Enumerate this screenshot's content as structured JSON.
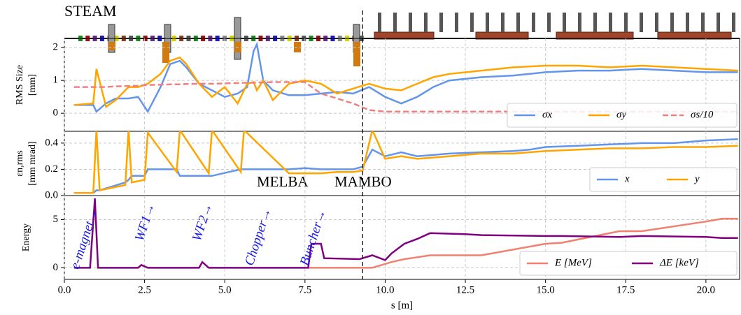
{
  "annotations": {
    "beamline": "STEAM",
    "left_section": "MELBA",
    "right_section": "MAMBO",
    "elements": [
      "e-magnet→",
      "WF1→",
      "WF2→",
      "Chopper→",
      "Buncher→"
    ],
    "section_boundary_s": 9.3
  },
  "chart_data": [
    {
      "type": "line",
      "ylabel": [
        "RMS Size",
        "[mm]"
      ],
      "xlim": [
        0,
        21.05
      ],
      "ylim": [
        -0.55,
        2.28
      ],
      "yticks": [
        0,
        1,
        2
      ],
      "grid": true,
      "legend": "lower right",
      "x": [
        0.3,
        0.9,
        1.0,
        1.3,
        1.6,
        2.0,
        2.3,
        2.6,
        3.0,
        3.3,
        3.6,
        3.8,
        4.2,
        4.6,
        5.0,
        5.4,
        5.7,
        5.9,
        6.0,
        6.2,
        6.5,
        7.0,
        7.5,
        8.0,
        8.5,
        9.0,
        9.5,
        10.0,
        10.5,
        11.0,
        11.5,
        12.0,
        13.0,
        14.0,
        15.0,
        16.0,
        17.0,
        18.0,
        19.0,
        20.0,
        21.0
      ],
      "series": [
        {
          "name": "σx",
          "color": "#6495ed",
          "style": "solid",
          "values": [
            0.25,
            0.25,
            0.05,
            0.3,
            0.45,
            0.45,
            0.5,
            0.05,
            0.8,
            1.5,
            1.6,
            1.4,
            0.9,
            0.7,
            0.5,
            0.6,
            0.8,
            1.9,
            2.1,
            1.0,
            0.7,
            0.55,
            0.55,
            0.6,
            0.65,
            0.6,
            0.8,
            0.5,
            0.3,
            0.5,
            0.8,
            1.0,
            1.1,
            1.15,
            1.25,
            1.3,
            1.3,
            1.35,
            1.3,
            1.25,
            1.25
          ]
        },
        {
          "name": "σy",
          "color": "#ffa500",
          "style": "solid",
          "values": [
            0.25,
            0.3,
            1.35,
            0.2,
            0.4,
            0.8,
            0.8,
            0.9,
            1.2,
            1.6,
            1.7,
            1.5,
            0.9,
            0.5,
            0.8,
            0.3,
            0.9,
            0.95,
            0.7,
            1.0,
            0.4,
            0.9,
            1.0,
            0.9,
            0.6,
            0.75,
            0.9,
            0.75,
            0.7,
            0.9,
            1.1,
            1.2,
            1.3,
            1.4,
            1.45,
            1.45,
            1.4,
            1.45,
            1.4,
            1.35,
            1.3
          ]
        },
        {
          "name": "σs/10",
          "color": "#f08080",
          "style": "dashed",
          "values": [
            0.8,
            0.8,
            0.8,
            0.8,
            0.82,
            0.83,
            0.84,
            0.86,
            0.87,
            0.88,
            0.88,
            0.89,
            0.9,
            0.9,
            0.91,
            0.92,
            0.93,
            0.93,
            0.94,
            0.94,
            0.95,
            0.95,
            0.95,
            0.6,
            0.45,
            0.3,
            0.1,
            0.05,
            0.05,
            0.05,
            0.05,
            0.05,
            0.05,
            0.05,
            0.05,
            0.05,
            0.05,
            0.05,
            0.05,
            0.05,
            0.05
          ]
        }
      ]
    },
    {
      "type": "line",
      "ylabel": [
        "εn,rms",
        "[mm mrad]"
      ],
      "xlim": [
        0,
        21.05
      ],
      "ylim": [
        0,
        0.49
      ],
      "yticks": [
        {
          "value": 0,
          "label": "0.0"
        },
        0.2,
        0.4
      ],
      "grid": true,
      "legend": "lower right",
      "x": [
        0.3,
        0.9,
        1.0,
        1.1,
        1.9,
        2.0,
        2.1,
        2.5,
        2.6,
        3.5,
        3.6,
        4.5,
        4.6,
        5.5,
        5.6,
        7.0,
        7.5,
        8.0,
        8.5,
        9.0,
        9.3,
        9.6,
        10.0,
        10.5,
        11.0,
        12.0,
        13.0,
        14.0,
        14.5,
        15.0,
        16.0,
        17.0,
        18.0,
        19.0,
        20.0,
        21.0
      ],
      "series": [
        {
          "name": "x",
          "color": "#6495ed",
          "style": "solid",
          "values": [
            0.02,
            0.02,
            0.04,
            0.04,
            0.1,
            0.12,
            0.15,
            0.15,
            0.2,
            0.2,
            0.15,
            0.15,
            0.15,
            0.2,
            0.2,
            0.2,
            0.21,
            0.2,
            0.2,
            0.2,
            0.22,
            0.35,
            0.3,
            0.33,
            0.3,
            0.32,
            0.33,
            0.34,
            0.35,
            0.37,
            0.38,
            0.39,
            0.4,
            0.4,
            0.42,
            0.43
          ]
        },
        {
          "name": "y",
          "color": "#ffa500",
          "style": "solid",
          "values": [
            0.02,
            0.02,
            0.5,
            0.04,
            0.08,
            0.5,
            0.1,
            0.12,
            0.48,
            0.18,
            0.5,
            0.17,
            0.5,
            0.18,
            0.5,
            0.17,
            0.17,
            0.17,
            0.18,
            0.18,
            0.19,
            0.5,
            0.28,
            0.3,
            0.28,
            0.3,
            0.32,
            0.32,
            0.33,
            0.34,
            0.35,
            0.36,
            0.36,
            0.37,
            0.37,
            0.38
          ]
        }
      ]
    },
    {
      "type": "line",
      "ylabel": [
        "Energy"
      ],
      "xlabel": "s [m]",
      "xlim": [
        0,
        21.05
      ],
      "ylim": [
        -1.2,
        7.5
      ],
      "yticks": [
        0,
        5
      ],
      "grid": true,
      "legend": "lower right",
      "xticks": [
        {
          "value": 0,
          "label": "0.0"
        },
        2.5,
        {
          "value": 5,
          "label": "5.0"
        },
        7.5,
        {
          "value": 10,
          "label": "10.0"
        },
        12.5,
        {
          "value": 15,
          "label": "15.0"
        },
        17.5,
        {
          "value": 20,
          "label": "20.0"
        }
      ],
      "x": [
        0.3,
        0.8,
        0.95,
        1.05,
        1.2,
        2.3,
        2.4,
        2.6,
        4.2,
        4.3,
        4.5,
        7.6,
        7.7,
        8.0,
        8.1,
        9.2,
        9.6,
        10.0,
        10.2,
        10.6,
        11.0,
        11.4,
        12.5,
        13.0,
        15.0,
        15.5,
        17.3,
        18.0,
        20.0,
        20.5,
        21.0
      ],
      "series": [
        {
          "name": "E [MeV]",
          "color": "#f08070",
          "style": "solid",
          "values": [
            null,
            null,
            null,
            null,
            null,
            null,
            null,
            null,
            null,
            null,
            null,
            0,
            0,
            0,
            0,
            0,
            0,
            0.4,
            0.6,
            0.9,
            1.1,
            1.3,
            1.3,
            1.3,
            2.5,
            2.6,
            3.8,
            3.8,
            4.8,
            5.1,
            5.1
          ]
        },
        {
          "name": "ΔE [keV]",
          "color": "#800080",
          "style": "solid",
          "values": [
            0,
            0,
            7.2,
            0,
            0,
            0,
            0.3,
            0,
            0,
            0.6,
            0,
            0,
            2.5,
            2.5,
            1.0,
            0.9,
            1.3,
            0.8,
            1.5,
            2.5,
            3.0,
            3.6,
            3.5,
            3.4,
            3.3,
            3.3,
            3.2,
            3.3,
            3.2,
            3.1,
            3.1
          ]
        }
      ]
    }
  ]
}
